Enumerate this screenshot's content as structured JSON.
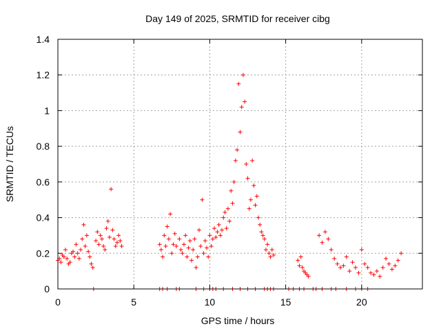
{
  "chart_data": {
    "type": "scatter",
    "title": "Day 149 of 2025, SRMTID for receiver cibg",
    "xlabel": "GPS time / hours",
    "ylabel": "SRMTID / TECUs",
    "xlim": [
      0,
      24
    ],
    "ylim": [
      0,
      1.4
    ],
    "xticks": [
      0,
      5,
      10,
      15,
      20
    ],
    "yticks": [
      0,
      0.2,
      0.4,
      0.6,
      0.8,
      1,
      1.2,
      1.4
    ],
    "xtick_labels": [
      "0",
      "5",
      "10",
      "15",
      "20"
    ],
    "ytick_labels": [
      "0",
      "0.2",
      "0.4",
      "0.6",
      "0.8",
      "1",
      "1.2",
      "1.4"
    ],
    "grid": true,
    "marker_color": "#ff0000",
    "series": [
      {
        "name": "SRMTID",
        "marker": "plus",
        "x": [
          0.0,
          0.1,
          0.2,
          0.3,
          0.4,
          0.5,
          0.6,
          0.7,
          0.8,
          0.9,
          1.0,
          1.1,
          1.2,
          1.3,
          1.4,
          1.5,
          1.6,
          1.7,
          1.8,
          1.9,
          2.0,
          2.1,
          2.2,
          2.3,
          2.5,
          2.6,
          2.7,
          2.8,
          2.9,
          3.0,
          3.1,
          3.2,
          3.3,
          3.4,
          3.5,
          3.6,
          3.7,
          3.8,
          3.9,
          4.0,
          4.1,
          4.2,
          6.7,
          6.8,
          6.9,
          7.0,
          7.1,
          7.2,
          7.3,
          7.4,
          7.5,
          7.6,
          7.7,
          7.8,
          8.0,
          8.1,
          8.2,
          8.3,
          8.4,
          8.5,
          8.6,
          8.7,
          8.8,
          8.9,
          9.0,
          9.1,
          9.2,
          9.3,
          9.4,
          9.5,
          9.6,
          9.7,
          9.8,
          9.9,
          10.0,
          10.1,
          10.2,
          10.3,
          10.4,
          10.5,
          10.6,
          10.7,
          10.8,
          10.9,
          11.0,
          11.1,
          11.2,
          11.3,
          11.4,
          11.5,
          11.6,
          11.7,
          11.8,
          11.9,
          12.0,
          12.1,
          12.2,
          12.3,
          12.4,
          12.5,
          12.6,
          12.7,
          12.8,
          12.9,
          13.0,
          13.1,
          13.2,
          13.3,
          13.4,
          13.5,
          13.6,
          13.7,
          13.8,
          13.9,
          14.0,
          14.1,
          14.2,
          15.8,
          15.9,
          16.0,
          16.1,
          16.2,
          16.3,
          16.4,
          16.5,
          17.2,
          17.4,
          17.6,
          17.8,
          18.0,
          18.2,
          18.4,
          18.6,
          18.8,
          19.0,
          19.2,
          19.4,
          19.6,
          19.8,
          20.0,
          20.2,
          20.4,
          20.6,
          20.8,
          21.0,
          21.2,
          21.4,
          21.6,
          21.8,
          22.0,
          22.2,
          22.4,
          22.6,
          2.35,
          6.7,
          6.9,
          7.2,
          7.8,
          8.0,
          9.1,
          9.6,
          10.0,
          10.2,
          10.4,
          10.9,
          11.5,
          12.0,
          12.5,
          13.0,
          13.6,
          13.8,
          14.0,
          14.2,
          15.2,
          15.5,
          15.9,
          16.2,
          16.8,
          17.0,
          17.4,
          18.0,
          18.3,
          19.0,
          19.6,
          20.0,
          20.4
        ],
        "y": [
          0.16,
          0.17,
          0.15,
          0.19,
          0.18,
          0.22,
          0.17,
          0.14,
          0.15,
          0.2,
          0.21,
          0.18,
          0.25,
          0.2,
          0.17,
          0.22,
          0.28,
          0.36,
          0.24,
          0.3,
          0.21,
          0.18,
          0.14,
          0.12,
          0.27,
          0.32,
          0.25,
          0.3,
          0.28,
          0.24,
          0.22,
          0.34,
          0.38,
          0.29,
          0.56,
          0.33,
          0.28,
          0.24,
          0.26,
          0.3,
          0.27,
          0.24,
          0.25,
          0.22,
          0.18,
          0.3,
          0.24,
          0.35,
          0.28,
          0.42,
          0.2,
          0.25,
          0.31,
          0.24,
          0.28,
          0.22,
          0.2,
          0.25,
          0.3,
          0.18,
          0.23,
          0.27,
          0.16,
          0.22,
          0.28,
          0.12,
          0.18,
          0.33,
          0.24,
          0.5,
          0.2,
          0.27,
          0.23,
          0.18,
          0.3,
          0.24,
          0.28,
          0.34,
          0.29,
          0.32,
          0.36,
          0.3,
          0.33,
          0.4,
          0.43,
          0.34,
          0.45,
          0.38,
          0.55,
          0.48,
          0.6,
          0.72,
          0.78,
          1.15,
          0.88,
          1.02,
          1.2,
          1.05,
          0.7,
          0.62,
          0.45,
          0.5,
          0.72,
          0.58,
          0.47,
          0.52,
          0.4,
          0.36,
          0.32,
          0.3,
          0.28,
          0.22,
          0.25,
          0.2,
          0.18,
          0.22,
          0.19,
          0.16,
          0.13,
          0.18,
          0.12,
          0.1,
          0.09,
          0.08,
          0.07,
          0.3,
          0.26,
          0.32,
          0.28,
          0.22,
          0.17,
          0.14,
          0.12,
          0.13,
          0.18,
          0.1,
          0.15,
          0.12,
          0.09,
          0.22,
          0.14,
          0.12,
          0.09,
          0.08,
          0.1,
          0.07,
          0.12,
          0.17,
          0.14,
          0.11,
          0.13,
          0.16,
          0.2,
          0,
          0,
          0,
          0,
          0,
          0,
          0,
          0,
          0,
          0,
          0,
          0,
          0,
          0,
          0,
          0,
          0,
          0,
          0,
          0,
          0,
          0,
          0,
          0,
          0,
          0,
          0,
          0,
          0,
          0,
          0,
          0,
          0
        ]
      }
    ]
  }
}
